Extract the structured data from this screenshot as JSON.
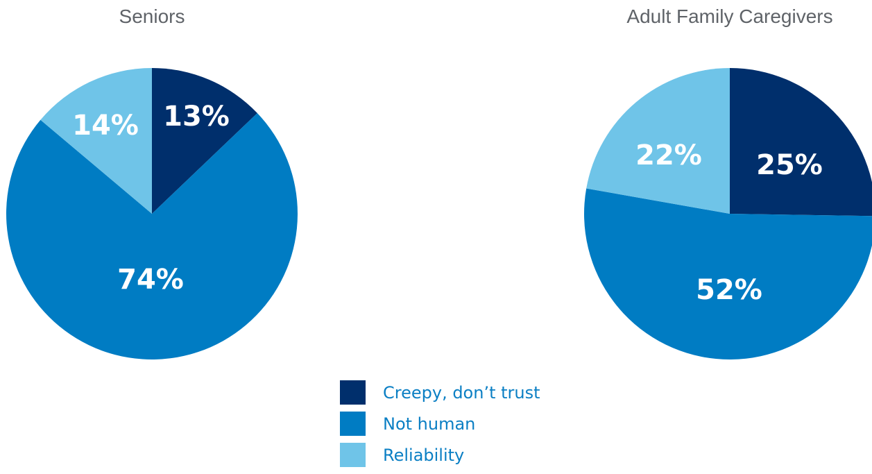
{
  "colors": {
    "creepy": "#002f6c",
    "not_human": "#007cc3",
    "reliability": "#6fc4e8",
    "title": "#5f6368",
    "legend_text": "#0b7fc4"
  },
  "legend": {
    "items": [
      {
        "label": "Creepy, don’t trust",
        "color": "#002f6c"
      },
      {
        "label": "Not human",
        "color": "#007cc3"
      },
      {
        "label": "Reliability",
        "color": "#6fc4e8"
      }
    ]
  },
  "chart_data": [
    {
      "type": "pie",
      "title": "Seniors",
      "slices": [
        {
          "label": "Creepy, don’t trust",
          "value": 13,
          "display": "13%",
          "color": "#002f6c"
        },
        {
          "label": "Not human",
          "value": 74,
          "display": "74%",
          "color": "#007cc3"
        },
        {
          "label": "Reliability",
          "value": 14,
          "display": "14%",
          "color": "#6fc4e8"
        }
      ],
      "legend_position": "bottom-center"
    },
    {
      "type": "pie",
      "title": "Adult Family Caregivers",
      "slices": [
        {
          "label": "Creepy, don’t trust",
          "value": 25,
          "display": "25%",
          "color": "#002f6c"
        },
        {
          "label": "Not human",
          "value": 52,
          "display": "52%",
          "color": "#007cc3"
        },
        {
          "label": "Reliability",
          "value": 22,
          "display": "22%",
          "color": "#6fc4e8"
        }
      ],
      "legend_position": "bottom-center"
    }
  ]
}
